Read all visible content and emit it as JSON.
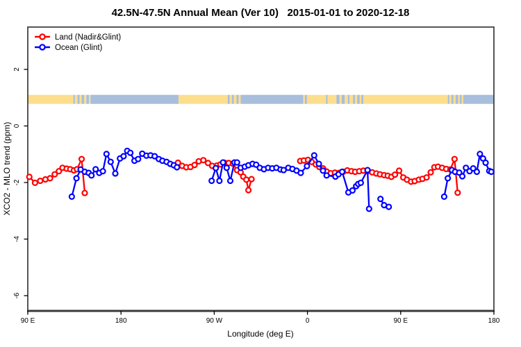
{
  "chart_data": {
    "type": "line",
    "title": "42.5N-47.5N Annual Mean (Ver 10)   2015-01-01 to 2020-12-18",
    "xlabel": "Longitude (deg E)",
    "ylabel": "XCO2 - MLO trend (ppm)",
    "x_axis": {
      "min": 90,
      "max": 540,
      "ticks": [
        {
          "value": 90,
          "label": "90 E"
        },
        {
          "value": 180,
          "label": "180"
        },
        {
          "value": 270,
          "label": "90 W"
        },
        {
          "value": 360,
          "label": "0"
        },
        {
          "value": 450,
          "label": "90 E"
        },
        {
          "value": 540,
          "label": "180"
        }
      ]
    },
    "y_axis": {
      "min": -6.8,
      "max": 3.45,
      "ticks": [
        {
          "value": 2,
          "label": "2"
        },
        {
          "value": 0,
          "label": "0"
        },
        {
          "value": -2,
          "label": "-2"
        },
        {
          "value": -4,
          "label": "-4"
        },
        {
          "value": -6,
          "label": "-6"
        }
      ]
    },
    "legend": {
      "position": "top-left"
    },
    "series": [
      {
        "name": "Land (Nadir&Glint)",
        "color": "#FF0000",
        "marker": "open-circle",
        "segments": [
          [
            [
              91.5,
              -1.8
            ],
            [
              97,
              -2.01
            ],
            [
              102,
              -1.94
            ],
            [
              107,
              -1.89
            ],
            [
              111.5,
              -1.85
            ],
            [
              116,
              -1.71
            ],
            [
              120,
              -1.6
            ],
            [
              123.5,
              -1.48
            ],
            [
              127.5,
              -1.51
            ],
            [
              131,
              -1.53
            ],
            [
              134.5,
              -1.57
            ],
            [
              137.5,
              -1.53
            ],
            [
              142,
              -1.17
            ],
            [
              145,
              -2.37
            ]
          ],
          [
            [
              235,
              -1.3
            ],
            [
              239,
              -1.41
            ],
            [
              243,
              -1.46
            ],
            [
              247,
              -1.45
            ],
            [
              251,
              -1.38
            ],
            [
              255,
              -1.25
            ],
            [
              259.5,
              -1.21
            ],
            [
              264,
              -1.31
            ],
            [
              268,
              -1.41
            ],
            [
              272.5,
              -1.4
            ],
            [
              276,
              -1.36
            ],
            [
              280,
              -1.3
            ],
            [
              284,
              -1.31
            ],
            [
              288,
              -1.33
            ],
            [
              292,
              -1.56
            ],
            [
              295.5,
              -1.64
            ],
            [
              298,
              -1.79
            ],
            [
              301,
              -1.9
            ],
            [
              303,
              -2.27
            ],
            [
              306,
              -1.88
            ]
          ],
          [
            [
              353,
              -1.24
            ],
            [
              356.5,
              -1.22
            ],
            [
              360.5,
              -1.2
            ],
            [
              364,
              -1.27
            ],
            [
              368,
              -1.36
            ],
            [
              371.5,
              -1.45
            ],
            [
              375,
              -1.5
            ],
            [
              378.5,
              -1.61
            ],
            [
              382.5,
              -1.67
            ],
            [
              386.5,
              -1.65
            ],
            [
              390.5,
              -1.66
            ],
            [
              394.5,
              -1.62
            ],
            [
              398.5,
              -1.57
            ],
            [
              402.5,
              -1.6
            ],
            [
              406,
              -1.62
            ],
            [
              410,
              -1.6
            ],
            [
              414,
              -1.58
            ],
            [
              418,
              -1.6
            ],
            [
              422.5,
              -1.64
            ],
            [
              426.5,
              -1.68
            ],
            [
              430,
              -1.71
            ],
            [
              434,
              -1.74
            ],
            [
              437.5,
              -1.76
            ],
            [
              441,
              -1.8
            ],
            [
              444.5,
              -1.72
            ],
            [
              448.5,
              -1.58
            ],
            [
              452.5,
              -1.82
            ],
            [
              456,
              -1.9
            ],
            [
              460,
              -1.97
            ],
            [
              463.5,
              -1.95
            ],
            [
              467.5,
              -1.9
            ],
            [
              471,
              -1.87
            ],
            [
              475,
              -1.82
            ],
            [
              479,
              -1.64
            ],
            [
              482.5,
              -1.46
            ],
            [
              486,
              -1.44
            ],
            [
              490,
              -1.48
            ],
            [
              494,
              -1.52
            ],
            [
              498,
              -1.54
            ],
            [
              502,
              -1.17
            ],
            [
              505,
              -2.36
            ]
          ]
        ]
      },
      {
        "name": "Ocean (Glint)",
        "color": "#0000FF",
        "marker": "open-circle",
        "segments": [
          [
            [
              132.5,
              -2.5
            ],
            [
              137,
              -1.85
            ],
            [
              141,
              -1.54
            ],
            [
              145,
              -1.62
            ],
            [
              148.8,
              -1.66
            ],
            [
              151.5,
              -1.75
            ],
            [
              155.5,
              -1.53
            ],
            [
              159,
              -1.66
            ],
            [
              162.5,
              -1.6
            ],
            [
              166,
              -0.99
            ],
            [
              170,
              -1.27
            ],
            [
              174.5,
              -1.68
            ],
            [
              179,
              -1.15
            ],
            [
              182.5,
              -1.07
            ],
            [
              186,
              -0.88
            ],
            [
              189,
              -0.95
            ],
            [
              193,
              -1.23
            ],
            [
              196.5,
              -1.17
            ],
            [
              200.5,
              -0.98
            ],
            [
              204.5,
              -1.05
            ],
            [
              208.5,
              -1.04
            ],
            [
              212.5,
              -1.07
            ],
            [
              216.5,
              -1.17
            ],
            [
              220,
              -1.23
            ],
            [
              224,
              -1.27
            ],
            [
              227.5,
              -1.34
            ],
            [
              231,
              -1.39
            ],
            [
              234,
              -1.46
            ]
          ],
          [
            [
              267.5,
              -1.94
            ],
            [
              271.5,
              -1.49
            ],
            [
              275,
              -1.94
            ],
            [
              278.5,
              -1.29
            ],
            [
              282,
              -1.48
            ],
            [
              285.5,
              -1.94
            ],
            [
              289.5,
              -1.29
            ],
            [
              292,
              -1.29
            ],
            [
              295.5,
              -1.48
            ],
            [
              299.5,
              -1.44
            ],
            [
              303,
              -1.39
            ],
            [
              307,
              -1.34
            ],
            [
              310.5,
              -1.37
            ],
            [
              314,
              -1.48
            ],
            [
              318,
              -1.53
            ],
            [
              322,
              -1.48
            ],
            [
              326,
              -1.5
            ],
            [
              330,
              -1.48
            ],
            [
              334,
              -1.54
            ],
            [
              337,
              -1.56
            ],
            [
              341.5,
              -1.48
            ],
            [
              345.5,
              -1.52
            ],
            [
              349.5,
              -1.58
            ],
            [
              353.5,
              -1.66
            ],
            [
              359.5,
              -1.42
            ],
            [
              366.5,
              -1.04
            ],
            [
              371,
              -1.34
            ],
            [
              375,
              -1.58
            ],
            [
              378.5,
              -1.75
            ],
            [
              387,
              -1.79
            ],
            [
              390,
              -1.71
            ],
            [
              393.5,
              -1.62
            ],
            [
              399.5,
              -2.35
            ],
            [
              403.5,
              -2.28
            ],
            [
              407,
              -2.13
            ],
            [
              409,
              -2.05
            ],
            [
              411.5,
              -2.01
            ],
            [
              418,
              -1.56
            ],
            [
              419.5,
              -2.93
            ]
          ],
          [
            [
              430.5,
              -2.58
            ],
            [
              434,
              -2.8
            ],
            [
              438.5,
              -2.86
            ]
          ],
          [
            [
              492,
              -2.5
            ],
            [
              495.5,
              -1.85
            ],
            [
              499.5,
              -1.56
            ],
            [
              502.5,
              -1.62
            ],
            [
              506.5,
              -1.65
            ],
            [
              509.5,
              -1.78
            ],
            [
              513,
              -1.48
            ],
            [
              516.5,
              -1.6
            ],
            [
              520,
              -1.5
            ],
            [
              523.5,
              -1.62
            ],
            [
              526.5,
              -0.99
            ],
            [
              529.5,
              -1.15
            ],
            [
              532,
              -1.3
            ],
            [
              535.5,
              -1.59
            ],
            [
              537.5,
              -1.62
            ]
          ]
        ]
      }
    ],
    "map_strip": {
      "y_from": 0.78,
      "y_to": 1.1,
      "land_color": "#FCDE8D",
      "ocean_color": "#A8BEDC",
      "segments": [
        [
          90,
          134,
          "land"
        ],
        [
          134,
          135.5,
          "ocean"
        ],
        [
          135.5,
          138,
          "land"
        ],
        [
          138,
          140,
          "ocean"
        ],
        [
          140,
          142,
          "land"
        ],
        [
          142,
          144.5,
          "ocean"
        ],
        [
          144.5,
          146.5,
          "land"
        ],
        [
          146.5,
          149,
          "ocean"
        ],
        [
          149,
          150.5,
          "land"
        ],
        [
          150.5,
          235.5,
          "ocean"
        ],
        [
          235.5,
          283,
          "land"
        ],
        [
          283,
          285,
          "ocean"
        ],
        [
          285,
          287,
          "land"
        ],
        [
          287,
          289,
          "ocean"
        ],
        [
          289,
          291.5,
          "land"
        ],
        [
          291.5,
          293.5,
          "ocean"
        ],
        [
          293.5,
          295.5,
          "land"
        ],
        [
          295.5,
          356,
          "ocean"
        ],
        [
          356,
          357.5,
          "land"
        ],
        [
          357.5,
          359.5,
          "ocean"
        ],
        [
          359.5,
          378,
          "land"
        ],
        [
          378,
          379.5,
          "ocean"
        ],
        [
          379.5,
          388,
          "land"
        ],
        [
          388,
          391,
          "ocean"
        ],
        [
          391,
          393,
          "land"
        ],
        [
          393,
          396,
          "ocean"
        ],
        [
          396,
          399,
          "land"
        ],
        [
          399,
          400.5,
          "ocean"
        ],
        [
          400.5,
          404,
          "land"
        ],
        [
          404,
          406,
          "ocean"
        ],
        [
          406,
          408,
          "land"
        ],
        [
          408,
          410.5,
          "ocean"
        ],
        [
          410.5,
          412,
          "land"
        ],
        [
          412,
          414,
          "ocean"
        ],
        [
          414,
          495.5,
          "land"
        ],
        [
          495.5,
          497,
          "ocean"
        ],
        [
          497,
          499,
          "land"
        ],
        [
          499,
          501,
          "ocean"
        ],
        [
          501,
          503,
          "land"
        ],
        [
          503,
          505.5,
          "ocean"
        ],
        [
          505.5,
          507,
          "land"
        ],
        [
          507,
          509,
          "ocean"
        ],
        [
          509,
          510.5,
          "land"
        ],
        [
          510.5,
          540,
          "ocean"
        ]
      ]
    },
    "axis_color": "#383838"
  }
}
